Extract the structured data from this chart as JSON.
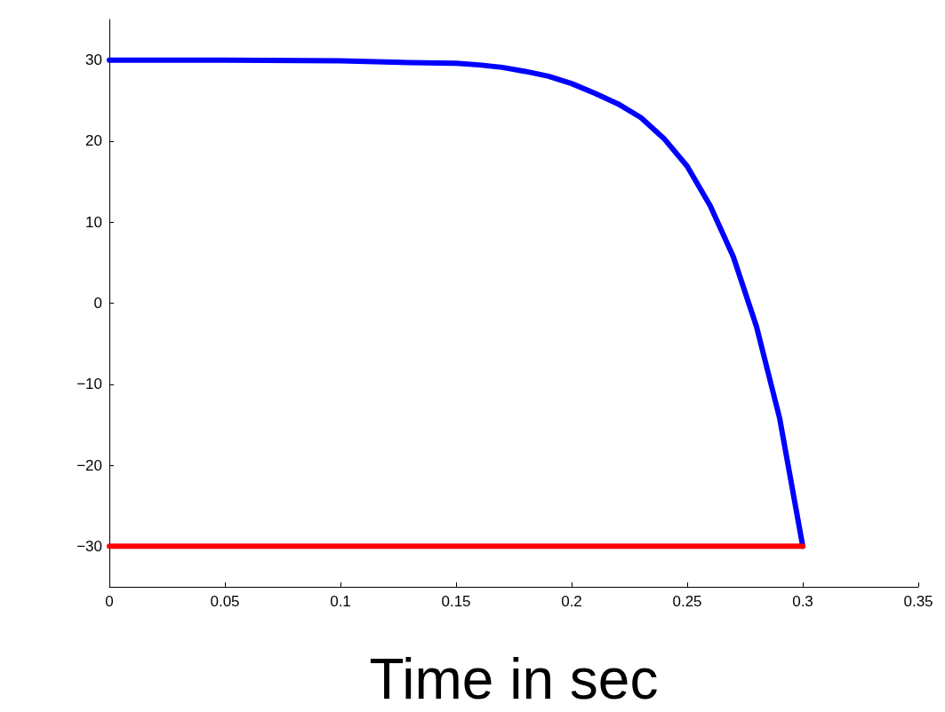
{
  "chart_data": {
    "type": "line",
    "xlabel": "Time in sec",
    "series": [
      {
        "color": "#0000ff",
        "x": [
          0,
          0.05,
          0.1,
          0.13,
          0.15,
          0.16,
          0.17,
          0.18,
          0.19,
          0.2,
          0.21,
          0.22,
          0.23,
          0.24,
          0.25,
          0.26,
          0.27,
          0.28,
          0.29,
          0.3
        ],
        "values": [
          30,
          30,
          29.9,
          29.7,
          29.6,
          29.4,
          29.1,
          28.6,
          28.0,
          27.1,
          25.9,
          24.6,
          22.9,
          20.3,
          16.9,
          12.0,
          5.7,
          -2.9,
          -14.2,
          -30
        ]
      },
      {
        "color": "#ff0000",
        "x": [
          0,
          0.3
        ],
        "values": [
          -30,
          -30
        ]
      }
    ],
    "xlim": [
      0,
      0.35
    ],
    "xticks": [
      0,
      0.05,
      0.1,
      0.15,
      0.2,
      0.25,
      0.3,
      0.35
    ],
    "ylim": [
      -35,
      35
    ],
    "yticks": [
      -30,
      -20,
      -10,
      0,
      10,
      20,
      30
    ],
    "grid": false,
    "marker": "none",
    "line_style": "solid"
  }
}
